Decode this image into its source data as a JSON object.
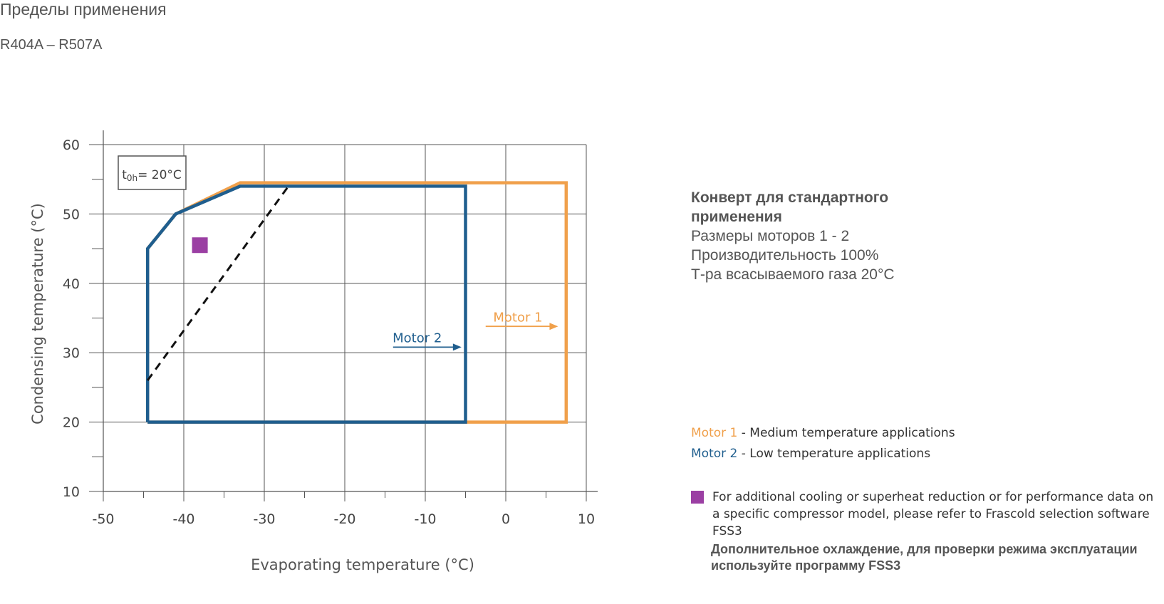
{
  "page": {
    "title": "Пределы применения",
    "subtitle": "R404A – R507A"
  },
  "info": {
    "heading": "Конверт для стандартного применения",
    "lines": [
      "Размеры моторов 1 - 2",
      "Производительность 100%",
      "Т-ра всасываемого газа 20°C"
    ]
  },
  "legend": [
    {
      "name": "Motor 1",
      "text": " - Medium temperature applications",
      "color": "#f0a04b"
    },
    {
      "name": "Motor 2",
      "text": " - Low temperature applications",
      "color": "#1f5e8e"
    }
  ],
  "note": {
    "marker_color": "#9b3fa3",
    "text": "For additional cooling or superheat reduction or for performance data on a specific compressor model, please refer to Frascold selection software FSS3",
    "text_ru": "Дополнительное охлаждение, для проверки режима эксплуатации используйте программу FSS3"
  },
  "chart_data": {
    "type": "area",
    "xlabel": "Evaporating temperature (°C)",
    "ylabel": "Condensing temperature (°C)",
    "xlim": [
      -50,
      10
    ],
    "ylim": [
      10,
      60
    ],
    "x_ticks": [
      -50,
      -40,
      -30,
      -20,
      -10,
      0,
      10
    ],
    "y_ticks": [
      10,
      20,
      30,
      40,
      50,
      60
    ],
    "grid": true,
    "annotation_box": {
      "sub": "0h",
      "value": "= 20°C",
      "prefix": "t"
    },
    "series": [
      {
        "name": "Motor 1",
        "color": "#f0a04b",
        "points": [
          [
            -44.5,
            20
          ],
          [
            7.5,
            20
          ],
          [
            7.5,
            54.5
          ],
          [
            -33,
            54.5
          ],
          [
            -41,
            50
          ],
          [
            -44.5,
            45
          ],
          [
            -44.5,
            20
          ]
        ]
      },
      {
        "name": "Motor 2",
        "color": "#1f5e8e",
        "points": [
          [
            -44.5,
            20
          ],
          [
            -5,
            20
          ],
          [
            -5,
            54
          ],
          [
            -33,
            54
          ],
          [
            -41,
            50
          ],
          [
            -44.5,
            45
          ],
          [
            -44.5,
            20
          ]
        ]
      }
    ],
    "dashed_line": {
      "color": "#111111",
      "points": [
        [
          -44.5,
          26
        ],
        [
          -27,
          54
        ]
      ]
    },
    "marker": {
      "x": -38,
      "y": 45.5,
      "color": "#9b3fa3"
    },
    "motor_labels": [
      {
        "text": "Motor 1",
        "x": 1.5,
        "y": 34.5,
        "arrow_from": -2.5,
        "arrow_to": 6.5,
        "arrow_y": 33.8,
        "color": "#f0a04b"
      },
      {
        "text": "Motor 2",
        "x": -11,
        "y": 31.5,
        "arrow_from": -14,
        "arrow_to": -5.5,
        "arrow_y": 30.8,
        "color": "#1f5e8e"
      }
    ]
  }
}
